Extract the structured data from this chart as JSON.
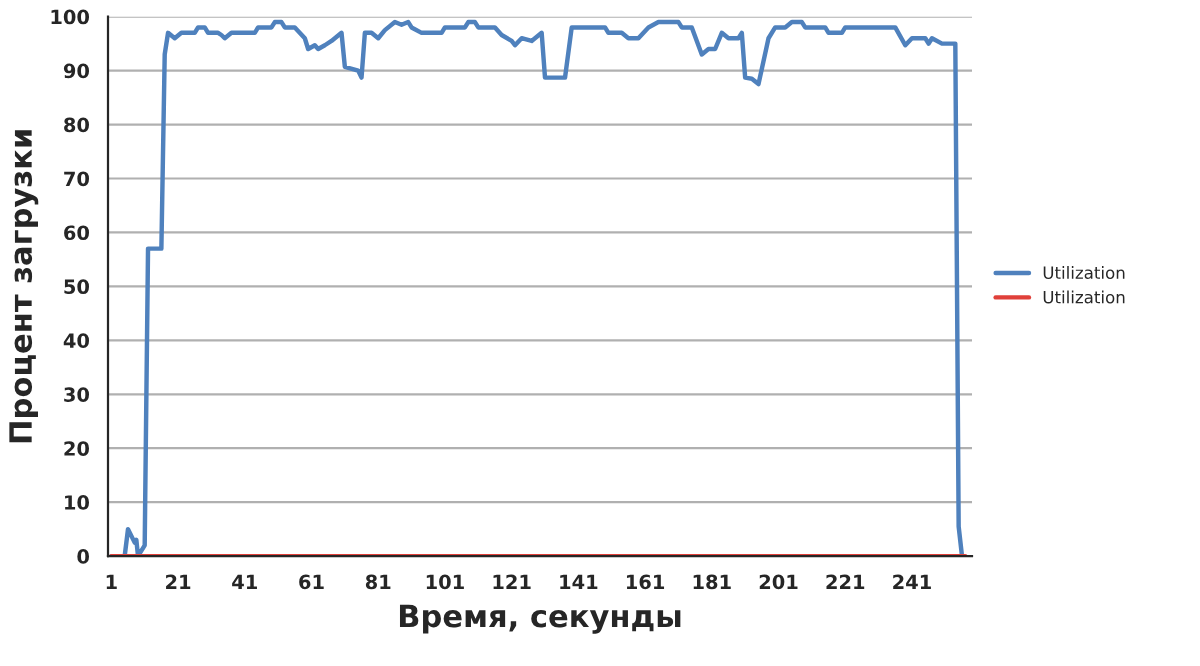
{
  "chart_data": {
    "type": "line",
    "xlabel": "Время, секунды",
    "ylabel": "Процент загрузки",
    "xlim": [
      0,
      259
    ],
    "xticks": [
      1,
      21,
      41,
      61,
      81,
      101,
      121,
      141,
      161,
      181,
      201,
      221,
      241
    ],
    "ylim": [
      0,
      100
    ],
    "yticks": [
      0,
      10,
      20,
      30,
      40,
      50,
      60,
      70,
      80,
      90,
      100
    ],
    "grid": "y",
    "legend": "right",
    "marker": "none",
    "line_style": "solid",
    "series": [
      {
        "name": "Utilization",
        "color": "#4f81bd",
        "x": [
          1,
          5,
          6,
          8,
          8.5,
          9,
          11,
          12,
          16,
          17,
          18,
          20,
          22,
          26,
          27,
          29,
          30,
          33,
          34,
          35,
          37,
          44,
          45,
          49,
          50,
          52,
          53,
          56,
          59,
          60,
          62,
          63,
          65,
          67,
          70,
          71,
          75,
          76,
          77,
          79,
          81,
          83,
          86,
          88,
          90,
          91,
          94,
          100,
          101,
          107,
          108,
          110,
          111,
          116,
          118,
          121,
          122,
          124,
          127,
          130,
          131,
          137,
          139,
          149,
          150,
          154,
          156,
          159,
          162,
          165,
          171,
          172,
          175,
          178,
          180,
          182,
          184,
          186,
          189,
          190,
          191,
          193,
          195,
          198,
          200,
          203,
          205,
          208,
          209,
          215,
          216,
          220,
          221,
          236,
          239,
          241,
          245,
          246,
          247,
          250,
          254,
          255,
          256
        ],
        "values": [
          0,
          0,
          5,
          2.5,
          3,
          0,
          2,
          57,
          57,
          93,
          97,
          96,
          97,
          97,
          98,
          98,
          97,
          97,
          96.6,
          96,
          97,
          97,
          98,
          98,
          99,
          99,
          98,
          98,
          96,
          94,
          94.7,
          94,
          94.7,
          95.5,
          97,
          90.7,
          90,
          88.7,
          97,
          97,
          96,
          97.5,
          99,
          98.5,
          99,
          98,
          97,
          97,
          98,
          98,
          99,
          99,
          98,
          98,
          96.6,
          95.5,
          94.7,
          96,
          95.5,
          97,
          88.7,
          88.7,
          98,
          98,
          97,
          97,
          96,
          96,
          98,
          99,
          99,
          98,
          98,
          93,
          94,
          94,
          97,
          96,
          96,
          97,
          88.7,
          88.5,
          87.5,
          96,
          98,
          98,
          99,
          99,
          98,
          98,
          97,
          97,
          98,
          98,
          94.7,
          96,
          96,
          95,
          96,
          95,
          95,
          5.5,
          0
        ]
      },
      {
        "name": "Utilization",
        "color": "#e0403a",
        "x": [
          1,
          257
        ],
        "values": [
          0,
          0
        ]
      }
    ]
  }
}
